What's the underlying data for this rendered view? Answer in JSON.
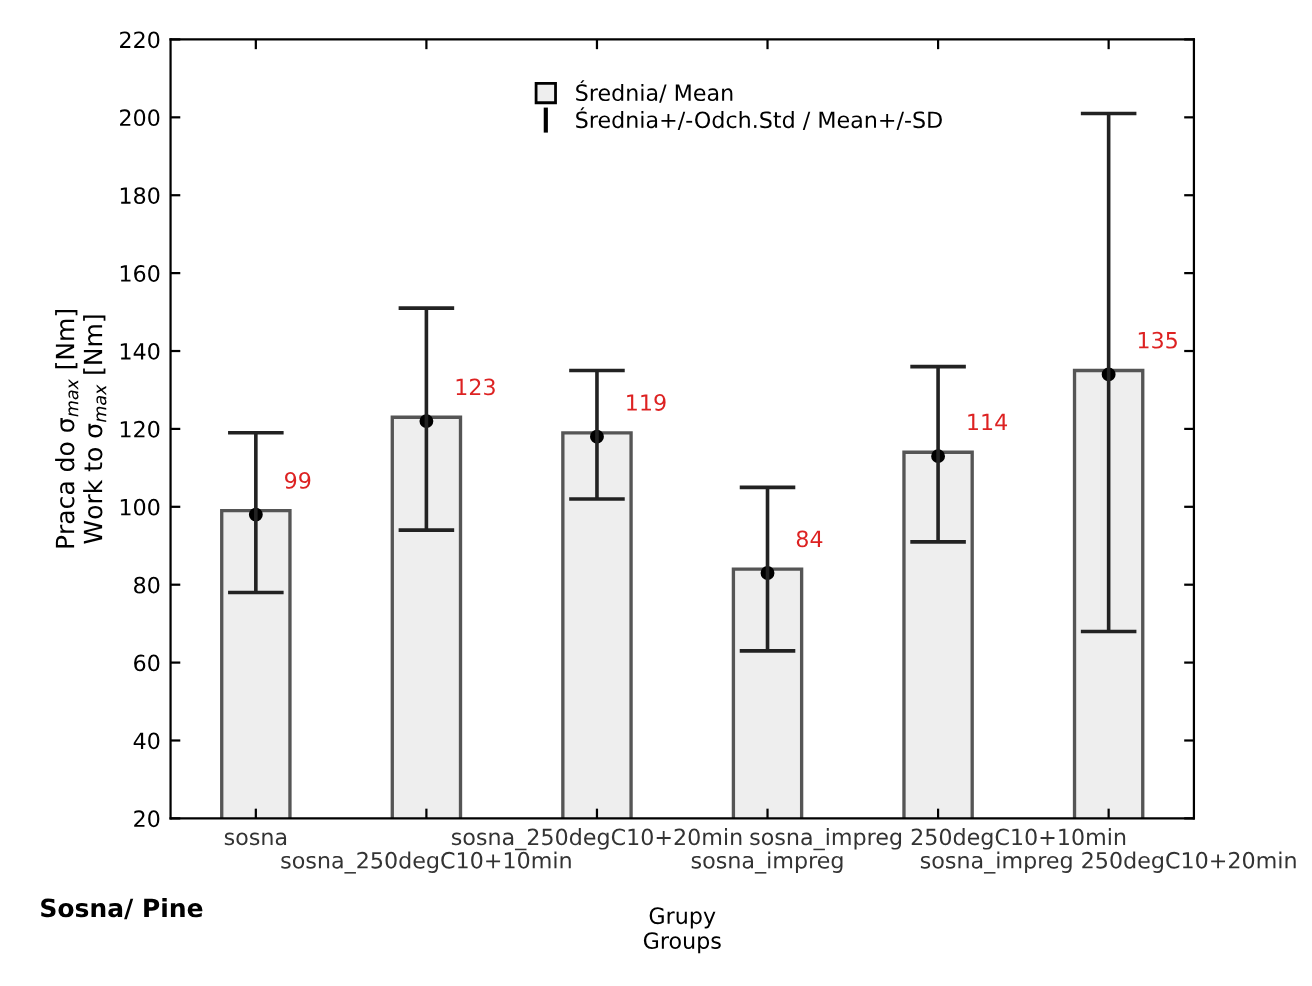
{
  "chart_data": {
    "type": "bar",
    "xlabel": "Grupy\nGroups",
    "ylabel": "Praca do σ$_{max}$ [Nm]\nWork to σ$_{max}$ [Nm]",
    "categories": [
      "sosna",
      "sosna_250degC10+10min",
      "sosna_250degC10+20min",
      "sosna_impreg",
      "sosna_impreg 250degC10+10min",
      "sosna_impreg 250degC10+20min"
    ],
    "series": [
      {
        "color": "#eeeeee",
        "values": [
          99,
          123,
          119,
          84,
          114,
          135
        ],
        "value_labels": [
          "99",
          "123",
          "119",
          "84",
          "114",
          "135"
        ]
      },
      {
        "type": "scatter",
        "name": "Średnia/ Mean",
        "color": "#000000",
        "values": [
          98,
          122,
          118,
          83,
          113,
          134
        ],
        "errors": [
          [
            78,
            119
          ],
          [
            94,
            151
          ],
          [
            102,
            135
          ],
          [
            63,
            105
          ],
          [
            91,
            136
          ],
          [
            68,
            201
          ]
        ]
      }
    ],
    "ylim": [
      20,
      220
    ],
    "yticks": [
      20,
      40,
      60,
      80,
      100,
      120,
      140,
      160,
      180,
      200,
      220
    ],
    "annotations": [
      "Średnia+/-Odch.Std / Mean+/-SD",
      "Sosna/ Pine"
    ],
    "legend": "top",
    "grid": false,
    "marker": "circle"
  }
}
